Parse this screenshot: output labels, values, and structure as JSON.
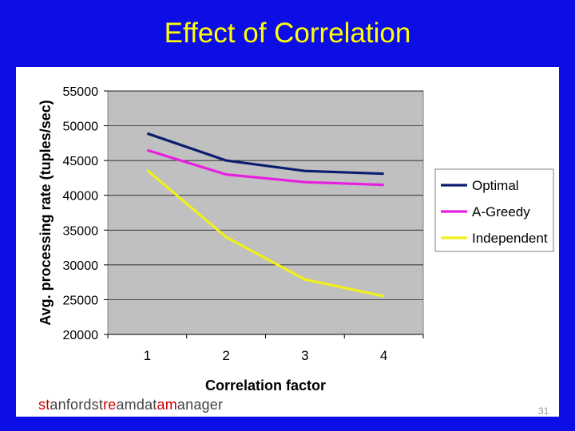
{
  "slide": {
    "title": "Effect of Correlation",
    "page_number": "31",
    "footer_parts": [
      {
        "text": "st",
        "color": "#cc0000"
      },
      {
        "text": "anford",
        "color": "#444444"
      },
      {
        "text": "st",
        "color": "#444444"
      },
      {
        "text": "re",
        "color": "#cc0000"
      },
      {
        "text": "amdat",
        "color": "#444444"
      },
      {
        "text": "am",
        "color": "#cc0000"
      },
      {
        "text": "anager",
        "color": "#444444"
      }
    ]
  },
  "colors": {
    "background": "#0d0ee6",
    "title": "#ffff00",
    "plot_area": "#c0c0c0"
  },
  "chart_data": {
    "type": "line",
    "title": "",
    "xlabel": "Correlation factor",
    "ylabel": "Avg. processing rate (tuples/sec)",
    "x": [
      1,
      2,
      3,
      4
    ],
    "x_tick_labels": [
      "1",
      "2",
      "3",
      "4"
    ],
    "ylim": [
      20000,
      55000
    ],
    "y_ticks": [
      20000,
      25000,
      30000,
      35000,
      40000,
      45000,
      50000,
      55000
    ],
    "y_tick_labels": [
      "20000",
      "25000",
      "30000",
      "35000",
      "40000",
      "45000",
      "50000",
      "55000"
    ],
    "grid": true,
    "legend_position": "right",
    "series": [
      {
        "name": "Optimal",
        "color": "#0a1d6e",
        "values": [
          48900,
          45000,
          43500,
          43100
        ]
      },
      {
        "name": "A-Greedy",
        "color": "#e81ee0",
        "values": [
          46500,
          43000,
          41900,
          41500
        ]
      },
      {
        "name": "Independent",
        "color": "#f0f01a",
        "values": [
          43600,
          34000,
          27900,
          25500
        ]
      }
    ]
  }
}
